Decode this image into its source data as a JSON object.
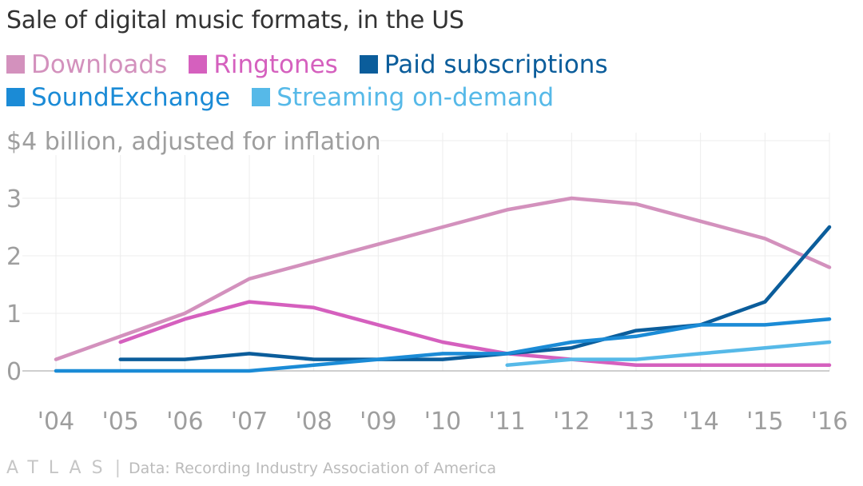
{
  "chart_data": {
    "type": "line",
    "title": "Sale of digital music formats, in the US",
    "ylabel": "$4 billion, adjusted for inflation",
    "xlabel": "",
    "categories": [
      "'04",
      "'05",
      "'06",
      "'07",
      "'08",
      "'09",
      "'10",
      "'11",
      "'12",
      "'13",
      "'14",
      "'15",
      "'16"
    ],
    "x": [
      2004,
      2005,
      2006,
      2007,
      2008,
      2009,
      2010,
      2011,
      2012,
      2013,
      2014,
      2015,
      2016
    ],
    "ylim": [
      0,
      4
    ],
    "yticks": [
      "0",
      "1",
      "2",
      "3"
    ],
    "grid": true,
    "legend_position": "top",
    "series": [
      {
        "name": "Downloads",
        "color": "#d391bd",
        "values": [
          0.2,
          0.6,
          1.0,
          1.6,
          1.9,
          2.2,
          2.5,
          2.8,
          3.0,
          2.9,
          2.6,
          2.3,
          1.8
        ]
      },
      {
        "name": "Ringtones",
        "color": "#d560be",
        "values": [
          null,
          0.5,
          0.9,
          1.2,
          1.1,
          0.8,
          0.5,
          0.3,
          0.2,
          0.1,
          0.1,
          0.1,
          0.1
        ]
      },
      {
        "name": "Paid subscriptions",
        "color": "#0b5d9b",
        "values": [
          null,
          0.2,
          0.2,
          0.3,
          0.2,
          0.2,
          0.2,
          0.3,
          0.4,
          0.7,
          0.8,
          1.2,
          2.5
        ]
      },
      {
        "name": "SoundExchange",
        "color": "#1b8bd6",
        "values": [
          0,
          0,
          0,
          0,
          0.1,
          0.2,
          0.3,
          0.3,
          0.5,
          0.6,
          0.8,
          0.8,
          0.9
        ]
      },
      {
        "name": "Streaming on-demand",
        "color": "#56b9e8",
        "values": [
          null,
          null,
          null,
          null,
          null,
          null,
          null,
          0.1,
          0.2,
          0.2,
          0.3,
          0.4,
          0.5
        ]
      }
    ]
  },
  "footer": {
    "brand": "ATLAS",
    "separator": "|",
    "source": "Data: Recording Industry Association of America"
  }
}
